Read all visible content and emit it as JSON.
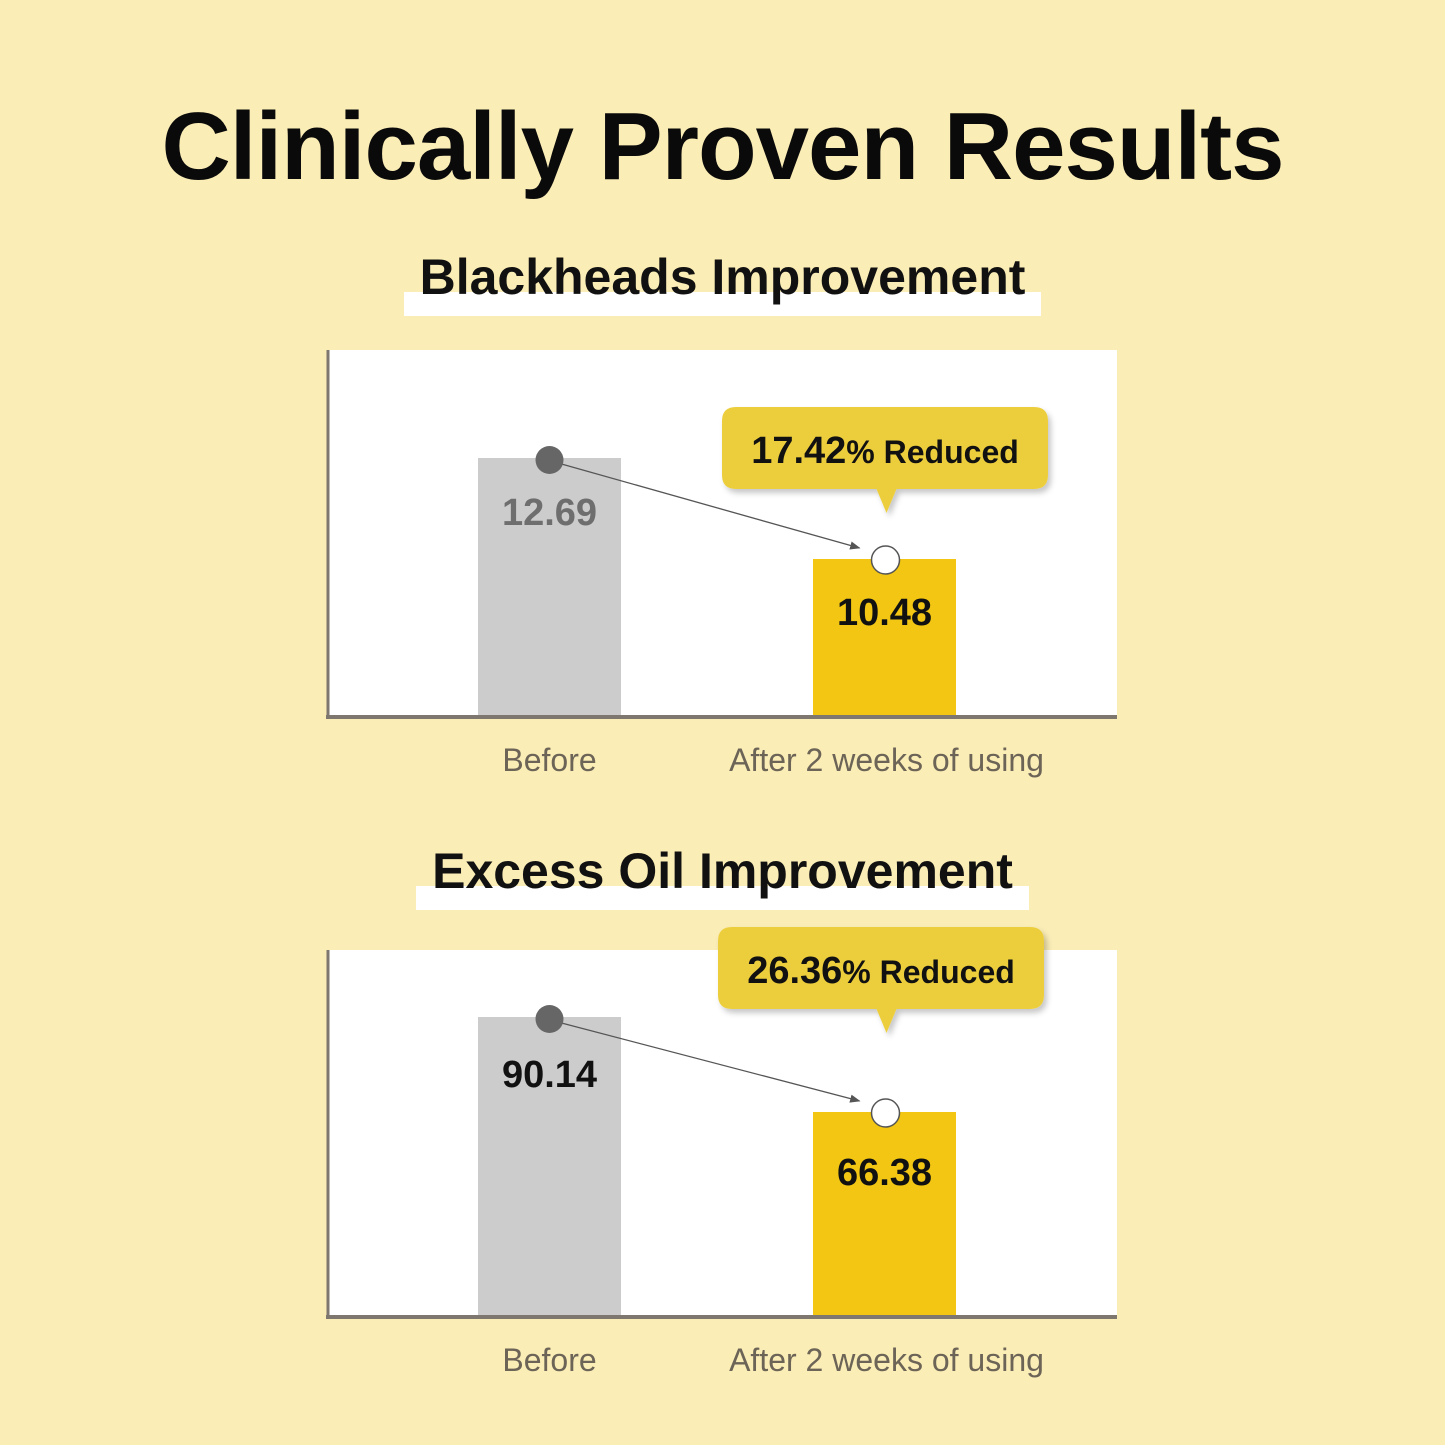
{
  "title": "Clinically Proven Results",
  "colors": {
    "background": "#fbedb6",
    "before_bar": "#cccccc",
    "after_bar": "#f2c612",
    "callout": "#ecce3e"
  },
  "chart_data": [
    {
      "type": "bar",
      "title": "Blackheads Improvement",
      "categories": [
        "Before",
        "After 2 weeks of using"
      ],
      "values": [
        12.69,
        10.48
      ],
      "value_labels": [
        "12.69",
        "10.48"
      ],
      "callout": {
        "value": "17.42",
        "unit": "%",
        "text": "Reduced"
      }
    },
    {
      "type": "bar",
      "title": "Excess Oil Improvement",
      "categories": [
        "Before",
        "After 2 weeks of using"
      ],
      "values": [
        90.14,
        66.38
      ],
      "value_labels": [
        "90.14",
        "66.38"
      ],
      "callout": {
        "value": "26.36",
        "unit": "%",
        "text": "Reduced"
      }
    }
  ]
}
